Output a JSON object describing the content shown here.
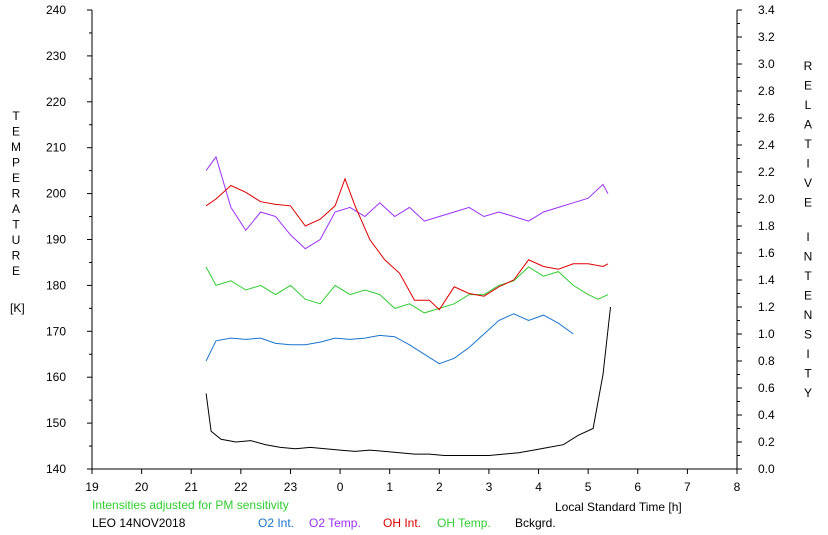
{
  "chart_data": {
    "type": "line",
    "xlabel": "Local Standard Time [h]",
    "x_tick_labels": [
      "19",
      "20",
      "21",
      "22",
      "23",
      "0",
      "1",
      "2",
      "3",
      "4",
      "5",
      "6",
      "7",
      "8"
    ],
    "y_left_label": "TEMPERATURE",
    "y_left_unit": "[K]",
    "y_left_ticks": [
      140,
      150,
      160,
      170,
      180,
      190,
      200,
      210,
      220,
      230,
      240
    ],
    "y_left_range": [
      140,
      240
    ],
    "y_right_label": "RELATIVE INTENSITY",
    "y_right_ticks": [
      "0.0",
      "0.2",
      "0.4",
      "0.6",
      "0.8",
      "1.0",
      "1.2",
      "1.4",
      "1.6",
      "1.8",
      "2.0",
      "2.2",
      "2.4",
      "2.6",
      "2.8",
      "3.0",
      "3.2",
      "3.4"
    ],
    "y_right_range": [
      0,
      3.4
    ],
    "x_range": [
      19,
      32
    ],
    "note": "Intensities adjusted for PM sensitivity",
    "station": "LEO 14NOV2018",
    "series": [
      {
        "name": "O2 Int.",
        "color": "#1874cd",
        "axis": "right",
        "points": [
          [
            21.3,
            0.8
          ],
          [
            21.5,
            0.95
          ],
          [
            21.8,
            0.97
          ],
          [
            22.1,
            0.96
          ],
          [
            22.4,
            0.97
          ],
          [
            22.7,
            0.93
          ],
          [
            23.0,
            0.92
          ],
          [
            23.3,
            0.92
          ],
          [
            23.6,
            0.94
          ],
          [
            23.9,
            0.97
          ],
          [
            24.2,
            0.96
          ],
          [
            24.5,
            0.97
          ],
          [
            24.8,
            0.99
          ],
          [
            25.1,
            0.98
          ],
          [
            25.4,
            0.92
          ],
          [
            25.7,
            0.85
          ],
          [
            26.0,
            0.78
          ],
          [
            26.3,
            0.82
          ],
          [
            26.6,
            0.9
          ],
          [
            26.9,
            1.0
          ],
          [
            27.2,
            1.1
          ],
          [
            27.5,
            1.15
          ],
          [
            27.8,
            1.1
          ],
          [
            28.1,
            1.14
          ],
          [
            28.4,
            1.08
          ],
          [
            28.7,
            1.0
          ]
        ]
      },
      {
        "name": "O2 Temp.",
        "color": "#9b30ff",
        "axis": "left",
        "points": [
          [
            21.3,
            205
          ],
          [
            21.5,
            208
          ],
          [
            21.8,
            197
          ],
          [
            22.1,
            192
          ],
          [
            22.4,
            196
          ],
          [
            22.7,
            195
          ],
          [
            23.0,
            191
          ],
          [
            23.3,
            188
          ],
          [
            23.6,
            190
          ],
          [
            23.9,
            196
          ],
          [
            24.2,
            197
          ],
          [
            24.5,
            195
          ],
          [
            24.8,
            198
          ],
          [
            25.1,
            195
          ],
          [
            25.4,
            197
          ],
          [
            25.7,
            194
          ],
          [
            26.0,
            195
          ],
          [
            26.3,
            196
          ],
          [
            26.6,
            197
          ],
          [
            26.9,
            195
          ],
          [
            27.2,
            196
          ],
          [
            27.5,
            195
          ],
          [
            27.8,
            194
          ],
          [
            28.1,
            196
          ],
          [
            28.4,
            197
          ],
          [
            28.7,
            198
          ],
          [
            29.0,
            199
          ],
          [
            29.3,
            202
          ],
          [
            29.4,
            200
          ]
        ]
      },
      {
        "name": "OH Int.",
        "color": "#dd0000",
        "axis": "right",
        "points": [
          [
            21.3,
            1.95
          ],
          [
            21.5,
            2.0
          ],
          [
            21.8,
            2.1
          ],
          [
            22.1,
            2.05
          ],
          [
            22.4,
            1.98
          ],
          [
            22.7,
            1.96
          ],
          [
            23.0,
            1.95
          ],
          [
            23.3,
            1.8
          ],
          [
            23.6,
            1.85
          ],
          [
            23.9,
            1.95
          ],
          [
            24.1,
            2.15
          ],
          [
            24.3,
            1.95
          ],
          [
            24.6,
            1.7
          ],
          [
            24.9,
            1.55
          ],
          [
            25.2,
            1.45
          ],
          [
            25.5,
            1.25
          ],
          [
            25.8,
            1.25
          ],
          [
            26.0,
            1.18
          ],
          [
            26.3,
            1.35
          ],
          [
            26.6,
            1.3
          ],
          [
            26.9,
            1.28
          ],
          [
            27.2,
            1.35
          ],
          [
            27.5,
            1.4
          ],
          [
            27.8,
            1.55
          ],
          [
            28.1,
            1.5
          ],
          [
            28.4,
            1.48
          ],
          [
            28.7,
            1.52
          ],
          [
            29.0,
            1.52
          ],
          [
            29.3,
            1.5
          ],
          [
            29.4,
            1.52
          ]
        ]
      },
      {
        "name": "OH Temp.",
        "color": "#32cd32",
        "axis": "left",
        "points": [
          [
            21.3,
            184
          ],
          [
            21.5,
            180
          ],
          [
            21.8,
            181
          ],
          [
            22.1,
            179
          ],
          [
            22.4,
            180
          ],
          [
            22.7,
            178
          ],
          [
            23.0,
            180
          ],
          [
            23.3,
            177
          ],
          [
            23.6,
            176
          ],
          [
            23.9,
            180
          ],
          [
            24.2,
            178
          ],
          [
            24.5,
            179
          ],
          [
            24.8,
            178
          ],
          [
            25.1,
            175
          ],
          [
            25.4,
            176
          ],
          [
            25.7,
            174
          ],
          [
            26.0,
            175
          ],
          [
            26.3,
            176
          ],
          [
            26.6,
            178
          ],
          [
            26.9,
            178
          ],
          [
            27.2,
            180
          ],
          [
            27.5,
            181
          ],
          [
            27.8,
            184
          ],
          [
            28.1,
            182
          ],
          [
            28.4,
            183
          ],
          [
            28.7,
            180
          ],
          [
            29.0,
            178
          ],
          [
            29.2,
            177
          ],
          [
            29.4,
            178
          ]
        ]
      },
      {
        "name": "Bckgrd.",
        "color": "#000000",
        "axis": "right",
        "points": [
          [
            21.3,
            0.56
          ],
          [
            21.4,
            0.28
          ],
          [
            21.6,
            0.22
          ],
          [
            21.9,
            0.2
          ],
          [
            22.2,
            0.21
          ],
          [
            22.5,
            0.18
          ],
          [
            22.8,
            0.16
          ],
          [
            23.1,
            0.15
          ],
          [
            23.4,
            0.16
          ],
          [
            23.7,
            0.15
          ],
          [
            24.0,
            0.14
          ],
          [
            24.3,
            0.13
          ],
          [
            24.6,
            0.14
          ],
          [
            24.9,
            0.13
          ],
          [
            25.2,
            0.12
          ],
          [
            25.5,
            0.11
          ],
          [
            25.8,
            0.11
          ],
          [
            26.1,
            0.1
          ],
          [
            26.4,
            0.1
          ],
          [
            26.7,
            0.1
          ],
          [
            27.0,
            0.1
          ],
          [
            27.3,
            0.11
          ],
          [
            27.6,
            0.12
          ],
          [
            27.9,
            0.14
          ],
          [
            28.2,
            0.16
          ],
          [
            28.5,
            0.18
          ],
          [
            28.8,
            0.25
          ],
          [
            29.1,
            0.3
          ],
          [
            29.3,
            0.7
          ],
          [
            29.45,
            1.2
          ]
        ]
      }
    ]
  }
}
